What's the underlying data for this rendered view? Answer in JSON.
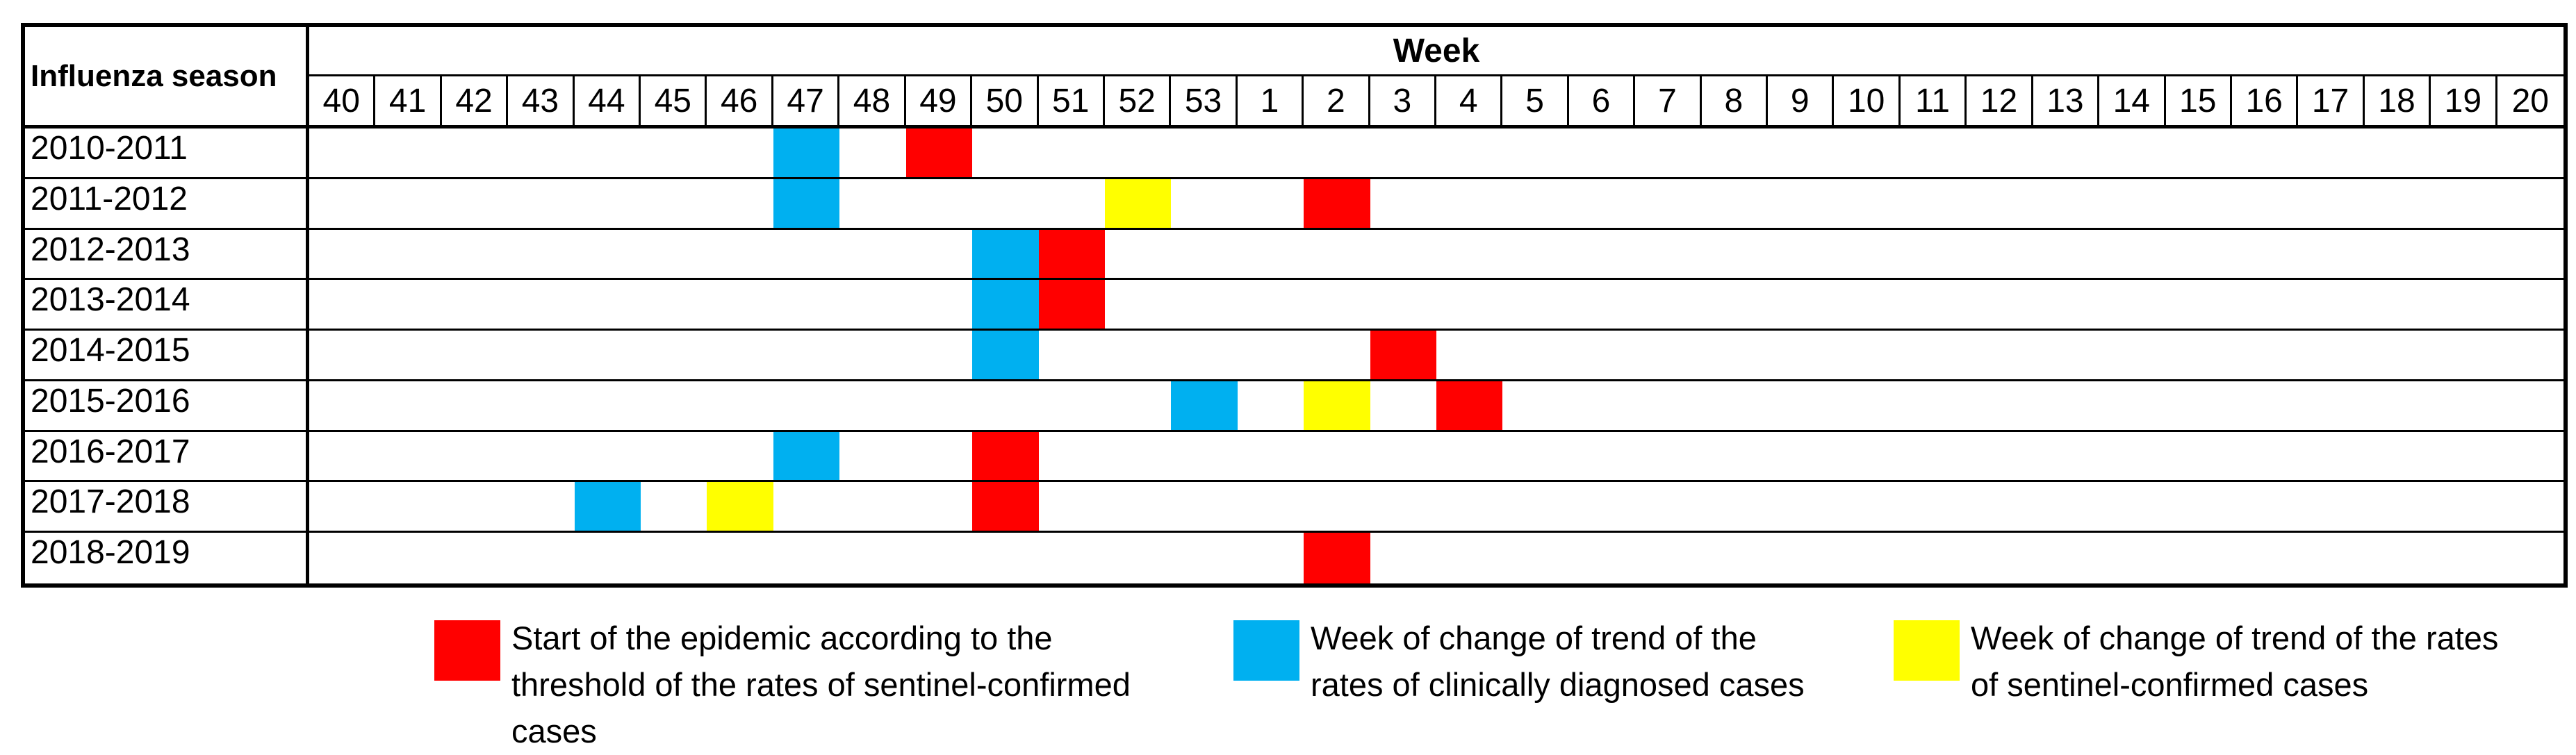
{
  "table": {
    "corner_header": "Influenza season",
    "week_header": "Week"
  },
  "chart_data": {
    "type": "heatmap",
    "title": "",
    "x_axis_label": "Week",
    "y_axis_label": "Influenza season",
    "x_categories": [
      "40",
      "41",
      "42",
      "43",
      "44",
      "45",
      "46",
      "47",
      "48",
      "49",
      "50",
      "51",
      "52",
      "53",
      "1",
      "2",
      "3",
      "4",
      "5",
      "6",
      "7",
      "8",
      "9",
      "10",
      "11",
      "12",
      "13",
      "14",
      "15",
      "16",
      "17",
      "18",
      "19",
      "20"
    ],
    "y_categories": [
      "2010-2011",
      "2011-2012",
      "2012-2013",
      "2013-2014",
      "2014-2015",
      "2015-2016",
      "2016-2017",
      "2017-2018",
      "2018-2019"
    ],
    "series": [
      {
        "season": "2010-2011",
        "marks": {
          "47": "clinical_trend_change",
          "49": "epidemic_start"
        }
      },
      {
        "season": "2011-2012",
        "marks": {
          "47": "clinical_trend_change",
          "52": "sentinel_trend_change",
          "2": "epidemic_start"
        }
      },
      {
        "season": "2012-2013",
        "marks": {
          "50": "clinical_trend_change",
          "51": "epidemic_start"
        }
      },
      {
        "season": "2013-2014",
        "marks": {
          "50": "clinical_trend_change",
          "51": "epidemic_start"
        }
      },
      {
        "season": "2014-2015",
        "marks": {
          "50": "clinical_trend_change",
          "3": "epidemic_start"
        }
      },
      {
        "season": "2015-2016",
        "marks": {
          "53": "clinical_trend_change",
          "2": "sentinel_trend_change",
          "4": "epidemic_start"
        }
      },
      {
        "season": "2016-2017",
        "marks": {
          "47": "clinical_trend_change",
          "50": "epidemic_start"
        }
      },
      {
        "season": "2017-2018",
        "marks": {
          "44": "clinical_trend_change",
          "46": "sentinel_trend_change",
          "50": "epidemic_start"
        }
      },
      {
        "season": "2018-2019",
        "marks": {
          "2": "epidemic_start"
        }
      }
    ],
    "legend_position": "bottom",
    "grid": "horizontal-row-lines-only"
  },
  "legend": [
    {
      "key": "epidemic_start",
      "color": "#FF0000",
      "lines": [
        "Start of the epidemic according to the",
        "threshold of the rates of sentinel-confirmed",
        "cases"
      ]
    },
    {
      "key": "clinical_trend_change",
      "color": "#00B0F0",
      "lines": [
        "Week of change of trend of the",
        "rates of clinically diagnosed cases"
      ]
    },
    {
      "key": "sentinel_trend_change",
      "color": "#FFFF00",
      "lines": [
        "Week of change of trend of the rates",
        "of sentinel-confirmed cases"
      ]
    }
  ],
  "colors": {
    "epidemic_start": "#FF0000",
    "clinical_trend_change": "#00B0F0",
    "sentinel_trend_change": "#FFFF00",
    "border": "#000000",
    "background": "#FFFFFF"
  }
}
